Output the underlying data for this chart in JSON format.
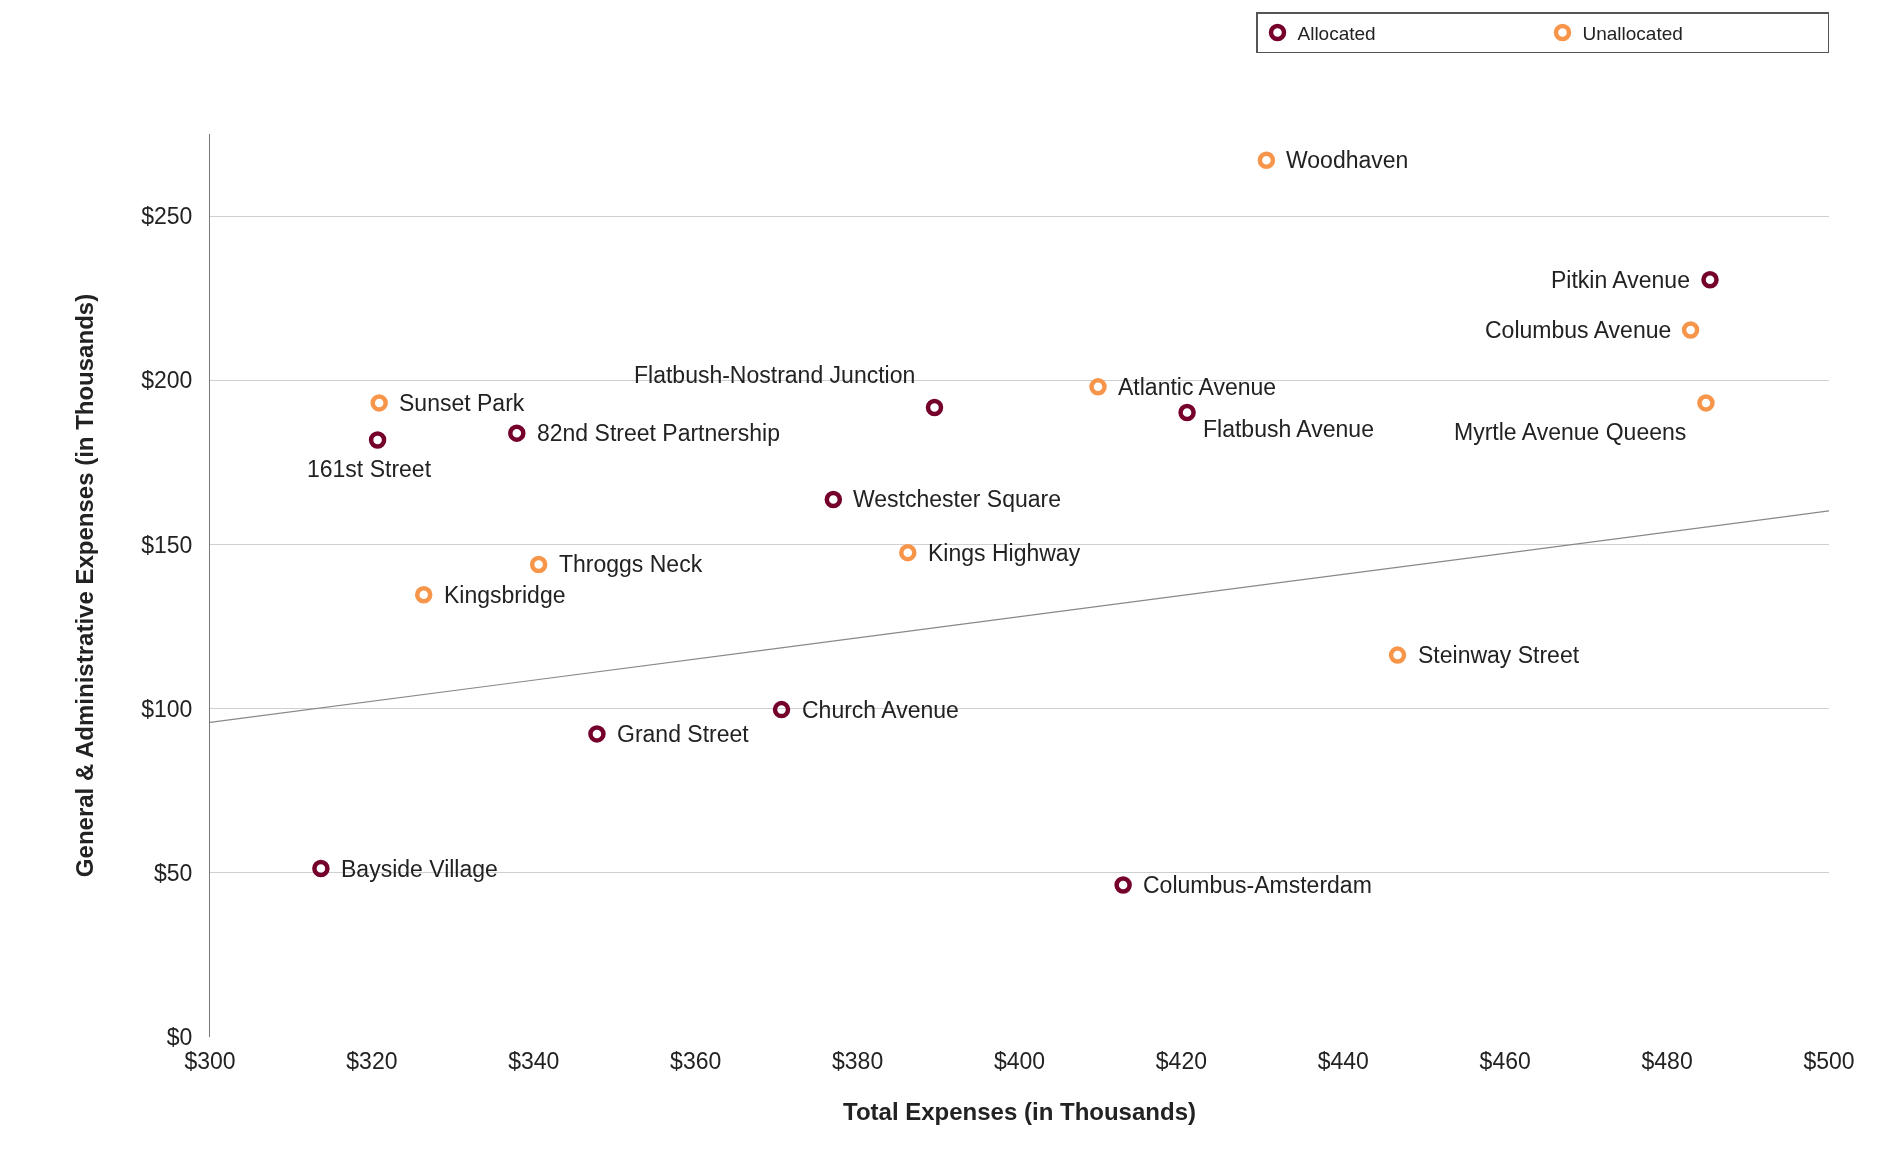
{
  "chart_data": {
    "type": "scatter",
    "xlabel": "Total Expenses (in Thousands)",
    "ylabel": "General & Administrative Expenses (in Thousands)",
    "xlim": [
      300,
      500
    ],
    "xticks": [
      {
        "value": 300,
        "label": "$300"
      },
      {
        "value": 320,
        "label": "$320"
      },
      {
        "value": 340,
        "label": "$340"
      },
      {
        "value": 360,
        "label": "$360"
      },
      {
        "value": 380,
        "label": "$380"
      },
      {
        "value": 400,
        "label": "$400"
      },
      {
        "value": 420,
        "label": "$420"
      },
      {
        "value": 440,
        "label": "$440"
      },
      {
        "value": 460,
        "label": "$460"
      },
      {
        "value": 480,
        "label": "$480"
      },
      {
        "value": 500,
        "label": "$500"
      }
    ],
    "ylim": [
      0,
      275
    ],
    "yticks": [
      {
        "value": 0,
        "label": "$0"
      },
      {
        "value": 50,
        "label": "$50"
      },
      {
        "value": 100,
        "label": "$100"
      },
      {
        "value": 150,
        "label": "$150"
      },
      {
        "value": 200,
        "label": "$200"
      },
      {
        "value": 250,
        "label": "$250"
      }
    ],
    "grid": "y",
    "legend": "top right",
    "marker": "circle",
    "series": [
      {
        "name": "Allocated",
        "color": "#75002b",
        "x": [
          485.3,
          320.7,
          337.9,
          389.5,
          420.7,
          377.0,
          370.6,
          347.8,
          313.7,
          412.8
        ],
        "values": [
          230.6,
          181.8,
          183.9,
          191.7,
          190.2,
          163.7,
          99.7,
          92.3,
          51.3,
          46.3
        ]
      },
      {
        "name": "Unallocated",
        "color": "#f7964a",
        "x": [
          430.5,
          482.9,
          484.8,
          409.7,
          320.9,
          340.6,
          326.4,
          386.2,
          446.7
        ],
        "values": [
          267.0,
          215.3,
          193.1,
          198.0,
          193.1,
          143.9,
          134.7,
          147.5,
          116.3
        ]
      },
      {
        "type": "line",
        "color": "#888888",
        "x": [
          300,
          500
        ],
        "values": [
          95.8,
          160.2
        ],
        "line_style": "solid",
        "marker": "none"
      }
    ],
    "annotations": [
      {
        "text": "Pitkin Avenue",
        "x": 485.3,
        "y": 230.6
      },
      {
        "text": "161st Street",
        "x": 320.7,
        "y": 181.8
      },
      {
        "text": "82nd Street Partnership",
        "x": 337.9,
        "y": 183.9
      },
      {
        "text": "Flatbush-Nostrand Junction",
        "x": 389.5,
        "y": 191.7
      },
      {
        "text": "Flatbush Avenue",
        "x": 420.7,
        "y": 190.2
      },
      {
        "text": "Westchester Square",
        "x": 377.0,
        "y": 163.7
      },
      {
        "text": "Church Avenue",
        "x": 370.6,
        "y": 99.7
      },
      {
        "text": "Grand Street",
        "x": 347.8,
        "y": 92.3
      },
      {
        "text": "Bayside Village",
        "x": 313.7,
        "y": 51.3
      },
      {
        "text": "Columbus-Amsterdam",
        "x": 412.8,
        "y": 46.3
      },
      {
        "text": "Woodhaven",
        "x": 430.5,
        "y": 267.0
      },
      {
        "text": "Columbus Avenue",
        "x": 482.9,
        "y": 215.3
      },
      {
        "text": "Myrtle Avenue Queens",
        "x": 484.8,
        "y": 193.1
      },
      {
        "text": "Atlantic Avenue",
        "x": 409.7,
        "y": 198.0
      },
      {
        "text": "Sunset Park",
        "x": 320.9,
        "y": 193.1
      },
      {
        "text": "Throggs Neck",
        "x": 340.6,
        "y": 143.9
      },
      {
        "text": "Kingsbridge",
        "x": 326.4,
        "y": 134.7
      },
      {
        "text": "Kings Highway",
        "x": 386.2,
        "y": 147.5
      },
      {
        "text": "Steinway Street",
        "x": 446.7,
        "y": 116.3
      }
    ]
  }
}
